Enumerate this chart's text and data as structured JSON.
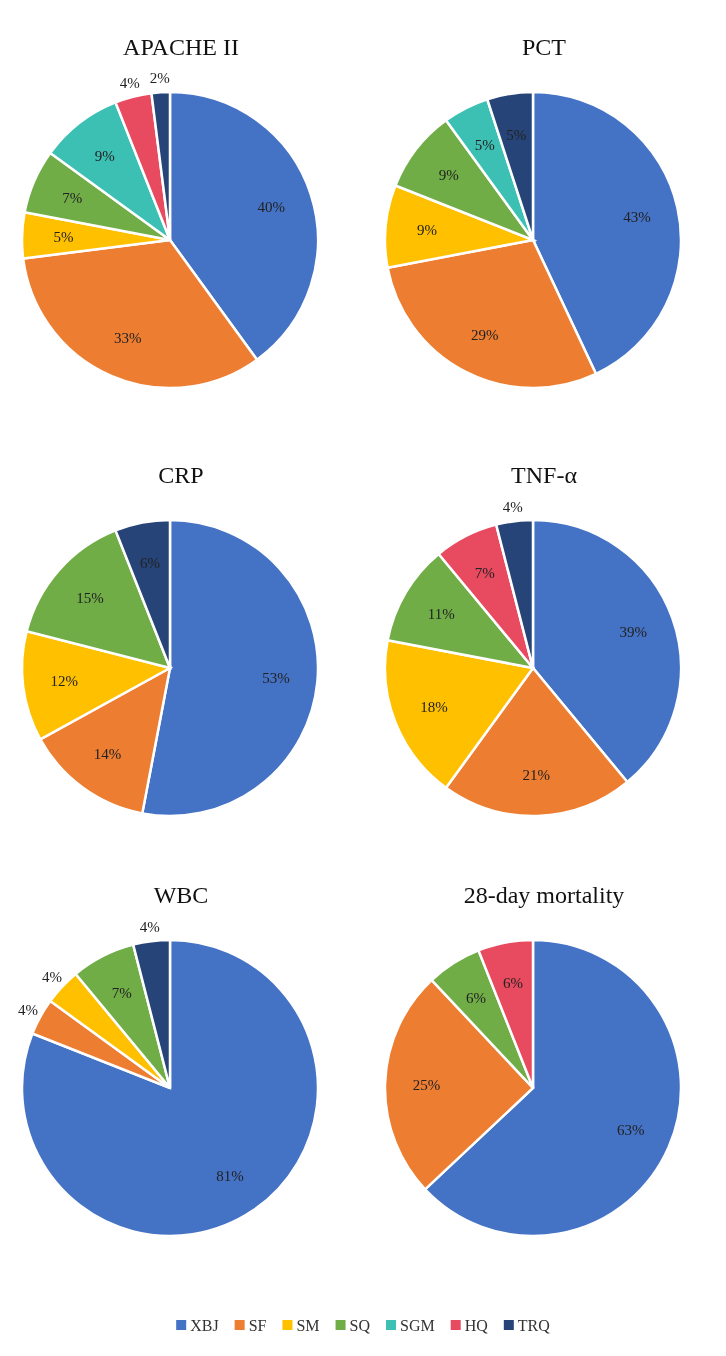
{
  "chart_data": [
    {
      "type": "pie",
      "title": "APACHE II",
      "categories": [
        "XBJ",
        "SF",
        "SM",
        "SQ",
        "SGM",
        "HQ",
        "TRQ"
      ],
      "values": [
        40,
        33,
        5,
        7,
        9,
        4,
        2
      ],
      "value_labels": [
        "40%",
        "33%",
        "5%",
        "7%",
        "9%",
        "4%",
        "2%"
      ],
      "colors": [
        "#4472c4",
        "#ed7d31",
        "#ffc000",
        "#70ad47",
        "#3cc0b4",
        "#e84a5f",
        "#264478"
      ],
      "legend": "bottom"
    },
    {
      "type": "pie",
      "title": "PCT",
      "categories": [
        null,
        null,
        null,
        null,
        null,
        null
      ],
      "values": [
        43,
        29,
        9,
        9,
        5,
        5
      ],
      "value_labels": [
        "43%",
        "29%",
        "9%",
        "9%",
        "5%",
        "5%"
      ],
      "colors": [
        "#4472c4",
        "#ed7d31",
        "#ffc000",
        "#70ad47",
        "#3cc0b4",
        "#264478"
      ]
    },
    {
      "type": "pie",
      "title": "CRP",
      "categories": [
        null,
        null,
        null,
        null,
        null
      ],
      "values": [
        53,
        14,
        12,
        15,
        6
      ],
      "value_labels": [
        "53%",
        "14%",
        "12%",
        "15%",
        "6%"
      ],
      "colors": [
        "#4472c4",
        "#ed7d31",
        "#ffc000",
        "#70ad47",
        "#264478"
      ]
    },
    {
      "type": "pie",
      "title": "TNF-α",
      "categories": [
        null,
        null,
        null,
        null,
        null,
        null
      ],
      "values": [
        39,
        21,
        18,
        11,
        7,
        4
      ],
      "value_labels": [
        "39%",
        "21%",
        "18%",
        "11%",
        "7%",
        "4%"
      ],
      "colors": [
        "#4472c4",
        "#ed7d31",
        "#ffc000",
        "#70ad47",
        "#e84a5f",
        "#264478"
      ]
    },
    {
      "type": "pie",
      "title": "WBC",
      "categories": [
        null,
        null,
        null,
        null,
        null
      ],
      "values": [
        81,
        4,
        4,
        7,
        4
      ],
      "value_labels": [
        "81%",
        "4%",
        "4%",
        "7%",
        "4%"
      ],
      "colors": [
        "#4472c4",
        "#ed7d31",
        "#ffc000",
        "#70ad47",
        "#264478"
      ]
    },
    {
      "type": "pie",
      "title": "28-day mortality",
      "categories": [
        null,
        null,
        null,
        null
      ],
      "values": [
        63,
        25,
        6,
        6
      ],
      "value_labels": [
        "63%",
        "25%",
        "6%",
        "6%"
      ],
      "colors": [
        "#4472c4",
        "#ed7d31",
        "#70ad47",
        "#e84a5f"
      ]
    }
  ]
}
